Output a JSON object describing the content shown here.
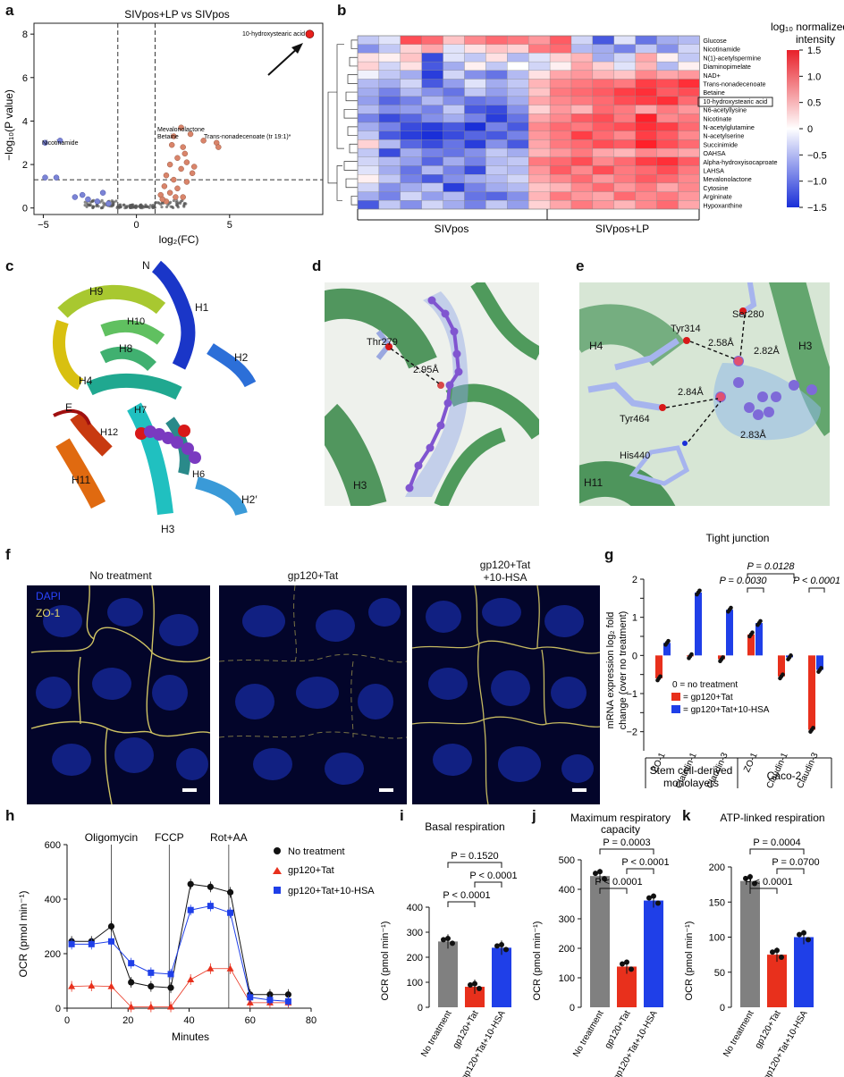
{
  "panel_labels": [
    "a",
    "b",
    "c",
    "d",
    "e",
    "f",
    "g",
    "h",
    "i",
    "j",
    "k"
  ],
  "colors": {
    "red": "#e8301c",
    "blue": "#1f3fe8",
    "gray": "#808080",
    "black": "#111111",
    "volcano_up": "#d9846a",
    "volcano_down": "#7b84d6",
    "heat_high": "#e8202a",
    "heat_low": "#1a2fd8",
    "protein_green": "#4f9a5c",
    "ligand_purple": "#7b4fc8"
  },
  "a": {
    "title": "SIVpos+LP vs SIVpos",
    "xlabel": "log₂(FC)",
    "ylabel": "−log₁₀(P value)",
    "ann": {
      "hsa": "10-hydroxystearic acid",
      "nic": "Nicotinamide",
      "mev": "Mevalonolactone",
      "bet": "Betaine",
      "tns": "Trans-nonadecenoate (tr 19:1)*"
    }
  },
  "b": {
    "legend_title_1": "log₁₀ normalized",
    "legend_title_2": "intensity",
    "legend_ticks": [
      "1.5",
      "1.0",
      "0.5",
      "0",
      "−0.5",
      "−1.0",
      "−1.5"
    ],
    "groups": [
      "SIVpos",
      "SIVpos+LP"
    ],
    "rows": [
      "Glucose",
      "Nicotinamide",
      "N(1)-acetylspermine",
      "Diaminopimelate",
      "NAD+",
      "Trans-nonadecenoate",
      "Betaine",
      "10-hydroxystearic acid",
      "N6-acetyllysine",
      "Nicotinate",
      "N-acetylglutamine",
      "N-acetylserine",
      "Succinimide",
      "OAHSA",
      "Alpha-hydroxyisocaproate",
      "LAHSA",
      "Mevalonolactone",
      "Cytosine",
      "Argininate",
      "Hypoxanthine"
    ],
    "boxed_row": "10-hydroxystearic acid"
  },
  "c": {
    "labels": [
      "N",
      "H1",
      "H2",
      "H9",
      "H10",
      "H8",
      "H4",
      "H7",
      "E",
      "H12",
      "H11",
      "H6",
      "H3",
      "H2′"
    ]
  },
  "d": {
    "labels": [
      "Thr279",
      "2.95Å",
      "H3"
    ]
  },
  "e": {
    "labels": [
      "Ser280",
      "H3",
      "Tyr314",
      "2.58Å",
      "2.82Å",
      "H4",
      "2.84Å",
      "Tyr464",
      "2.83Å",
      "His440",
      "H11"
    ]
  },
  "f": {
    "titles": [
      "No treatment",
      "gp120+Tat",
      "gp120+Tat\n+10-HSA"
    ],
    "stain_dapi": "DAPI",
    "stain_zo": "ZO-1"
  },
  "g": {
    "title": "Tight junction",
    "ylabel_1": "mRNA expression log₂ fold",
    "ylabel_2": "change (over no treatment)",
    "pvals": [
      "P = 0.0030",
      "P = 0.0128",
      "P < 0.0001"
    ],
    "group_labels": [
      "Stem cell-derived",
      "monolayers",
      "Caco-2"
    ],
    "legend": [
      "0 = no treatment",
      "= gp120+Tat",
      "= gp120+Tat+10-HSA"
    ]
  },
  "h": {
    "annotations": [
      "Oligomycin",
      "FCCP",
      "Rot+AA"
    ],
    "legend": [
      "No treatment",
      "gp120+Tat",
      "gp120+Tat+10-HSA"
    ],
    "xlabel": "Minutes",
    "ylabel": "OCR (pmol min⁻¹)"
  },
  "i": {
    "title": "Basal respiration",
    "pvals": [
      "P = 0.1520",
      "P < 0.0001",
      "P < 0.0001"
    ],
    "ylabel": "OCR (pmol min⁻¹)"
  },
  "j": {
    "title_1": "Maximum respiratory",
    "title_2": "capacity",
    "pvals": [
      "P = 0.0003",
      "P < 0.0001",
      "P < 0.0001"
    ],
    "ylabel": "OCR (pmol min⁻¹)"
  },
  "k": {
    "title": "ATP-linked respiration",
    "pvals": [
      "P = 0.0004",
      "P < 0.0001",
      "P = 0.0700"
    ],
    "ylabel": "OCR (pmol min⁻¹)"
  },
  "bar_categories": [
    "No treatment",
    "gp120+Tat",
    "gp120+Tat+10-HSA"
  ],
  "chart_data": [
    {
      "panel": "a",
      "type": "scatter",
      "title": "SIVpos+LP vs SIVpos",
      "xlabel": "log₂(FC)",
      "ylabel": "−log₁₀(P value)",
      "xlim": [
        -5.5,
        10
      ],
      "ylim": [
        -0.3,
        8.5
      ],
      "xticks": [
        -5,
        0,
        5
      ],
      "yticks": [
        0,
        2,
        4,
        6,
        8
      ],
      "threshold_y": 1.3,
      "threshold_x": [
        -1,
        1
      ],
      "highlight": {
        "x": 9.3,
        "y": 8.0,
        "label": "10-hydroxystearic acid"
      },
      "up_points": [
        [
          2.4,
          3.7
        ],
        [
          2.0,
          3.3
        ],
        [
          2.9,
          3.4
        ],
        [
          3.6,
          3.1
        ],
        [
          4.3,
          3.0
        ],
        [
          4.4,
          2.8
        ],
        [
          2.5,
          2.8
        ],
        [
          1.9,
          2.9
        ],
        [
          2.6,
          2.5
        ],
        [
          2.2,
          2.3
        ],
        [
          2.7,
          2.1
        ],
        [
          3.1,
          1.9
        ],
        [
          1.8,
          2.0
        ],
        [
          2.4,
          1.8
        ],
        [
          3.0,
          1.6
        ],
        [
          1.6,
          1.5
        ],
        [
          2.0,
          1.3
        ],
        [
          2.7,
          1.2
        ],
        [
          1.5,
          1.0
        ],
        [
          2.2,
          0.9
        ],
        [
          1.8,
          0.7
        ],
        [
          1.3,
          0.6
        ],
        [
          2.5,
          0.5
        ],
        [
          1.6,
          0.3
        ],
        [
          1.4,
          0.4
        ],
        [
          2.1,
          0.5
        ]
      ],
      "down_points": [
        [
          -4.1,
          3.1
        ],
        [
          -4.9,
          3.0
        ],
        [
          -4.3,
          1.4
        ],
        [
          -4.9,
          1.4
        ],
        [
          -3.3,
          0.5
        ],
        [
          -2.9,
          0.6
        ],
        [
          -2.6,
          0.4
        ],
        [
          -1.8,
          0.7
        ],
        [
          -1.5,
          0.2
        ],
        [
          -2.1,
          0.3
        ]
      ],
      "ns_points_count": 160
    },
    {
      "panel": "b",
      "type": "heatmap",
      "rows": [
        "Glucose",
        "Nicotinamide",
        "N(1)-acetylspermine",
        "Diaminopimelate",
        "NAD+",
        "Trans-nonadecenoate",
        "Betaine",
        "10-hydroxystearic acid",
        "N6-acetyllysine",
        "Nicotinate",
        "N-acetylglutamine",
        "N-acetylserine",
        "Succinimide",
        "OAHSA",
        "Alpha-hydroxyisocaproate",
        "LAHSA",
        "Mevalonolactone",
        "Cytosine",
        "Argininate",
        "Hypoxanthine"
      ],
      "columns_per_group": 8,
      "groups": [
        "SIVpos",
        "SIVpos+LP"
      ],
      "scale": [
        -1.5,
        1.5
      ],
      "values": [
        [
          -0.4,
          -0.2,
          1.2,
          1.0,
          0.4,
          0.8,
          1.0,
          0.9,
          0.7,
          1.1,
          -0.3,
          -1.2,
          -0.2,
          -1.0,
          -0.6,
          -0.5
        ],
        [
          -0.8,
          -0.4,
          0.3,
          0.6,
          -0.2,
          0.2,
          0.4,
          0.3,
          0.9,
          1.0,
          -0.5,
          -0.6,
          -0.9,
          -0.4,
          -0.8,
          -0.3
        ],
        [
          0.2,
          0.1,
          0.4,
          -1.3,
          -0.2,
          -0.4,
          0.2,
          -0.5,
          -0.2,
          0.3,
          0.5,
          -0.6,
          -0.3,
          0.6,
          0.1,
          -0.4
        ],
        [
          0.3,
          -0.3,
          0.2,
          -1.2,
          -0.6,
          0.1,
          -0.4,
          0.0,
          -0.3,
          0.1,
          0.6,
          0.3,
          -0.2,
          0.5,
          -0.5,
          0.1
        ],
        [
          -0.1,
          -0.4,
          -0.6,
          -1.4,
          -0.3,
          -0.8,
          -1.0,
          -0.5,
          0.2,
          0.6,
          0.7,
          0.5,
          0.4,
          0.8,
          0.6,
          0.7
        ],
        [
          -0.5,
          -0.6,
          -0.3,
          -1.2,
          -0.7,
          -0.2,
          -0.6,
          -0.4,
          0.5,
          0.8,
          0.9,
          1.0,
          0.9,
          1.3,
          1.2,
          1.4
        ],
        [
          -0.6,
          -0.9,
          -0.5,
          -0.8,
          -1.0,
          -0.4,
          -0.7,
          -0.5,
          0.4,
          0.9,
          1.0,
          1.1,
          1.3,
          1.4,
          1.1,
          1.2
        ],
        [
          -0.7,
          -1.1,
          -0.9,
          -0.5,
          -0.8,
          -1.0,
          -0.9,
          -0.6,
          0.6,
          0.8,
          0.9,
          1.0,
          1.2,
          1.3,
          1.4,
          1.0
        ],
        [
          -0.5,
          -0.8,
          -0.7,
          -0.9,
          -0.4,
          -1.2,
          -1.3,
          -0.8,
          0.3,
          0.7,
          0.5,
          1.0,
          0.9,
          0.6,
          0.9,
          0.7
        ],
        [
          -0.9,
          -1.3,
          -1.1,
          -0.8,
          -0.6,
          -0.9,
          -1.4,
          -1.0,
          0.6,
          0.8,
          1.1,
          1.2,
          0.9,
          1.5,
          0.8,
          0.9
        ],
        [
          -0.6,
          -0.9,
          -1.3,
          -1.4,
          -1.2,
          -1.5,
          -0.9,
          -1.2,
          0.8,
          1.0,
          0.9,
          1.1,
          1.2,
          1.4,
          1.3,
          1.0
        ],
        [
          -0.4,
          -1.2,
          -1.4,
          -1.5,
          -1.3,
          -1.1,
          -1.2,
          -0.9,
          0.7,
          0.9,
          1.3,
          1.0,
          0.8,
          1.3,
          1.1,
          0.8
        ],
        [
          0.3,
          -0.5,
          -1.1,
          -1.3,
          -1.0,
          -1.4,
          -0.8,
          -1.2,
          0.6,
          0.9,
          1.0,
          1.2,
          1.1,
          1.5,
          1.2,
          1.0
        ],
        [
          -0.4,
          -1.3,
          -0.6,
          -0.9,
          -1.0,
          -0.8,
          -0.4,
          -0.6,
          0.5,
          0.7,
          0.9,
          0.6,
          0.5,
          0.8,
          0.7,
          0.6
        ],
        [
          -0.3,
          -0.5,
          -0.7,
          -1.1,
          -0.6,
          -0.9,
          -0.5,
          -0.4,
          0.9,
          1.0,
          1.2,
          0.8,
          1.0,
          1.3,
          1.4,
          1.1
        ],
        [
          -0.2,
          -0.6,
          -1.0,
          -0.5,
          -0.9,
          -1.3,
          -0.4,
          -0.5,
          0.7,
          1.1,
          0.8,
          1.2,
          0.9,
          1.0,
          1.2,
          0.9
        ],
        [
          0.1,
          -0.4,
          -0.9,
          -1.2,
          -0.8,
          -0.6,
          -0.5,
          -0.3,
          0.6,
          0.8,
          1.0,
          0.7,
          0.9,
          1.1,
          1.0,
          0.8
        ],
        [
          -0.3,
          -0.8,
          -0.6,
          -0.4,
          -1.4,
          -0.9,
          -0.6,
          -0.5,
          0.4,
          0.5,
          0.8,
          1.0,
          0.7,
          0.9,
          0.6,
          0.8
        ],
        [
          -0.6,
          -0.9,
          -0.3,
          -0.7,
          -0.5,
          -1.0,
          -1.1,
          -0.8,
          0.5,
          0.9,
          0.7,
          0.6,
          1.0,
          0.8,
          0.9,
          0.7
        ],
        [
          -1.2,
          -0.4,
          -0.8,
          -0.3,
          -0.6,
          -0.9,
          -0.4,
          -0.7,
          0.3,
          0.6,
          0.9,
          0.7,
          0.5,
          0.8,
          1.0,
          0.6
        ]
      ]
    },
    {
      "panel": "g",
      "type": "bar",
      "title": "Tight junction",
      "categories": [
        "ZO-1",
        "Claudin-1",
        "Claudin-3",
        "ZO-1",
        "Claudin-1",
        "Claudin-3"
      ],
      "ylim": [
        -2.5,
        2
      ],
      "yticks": [
        -2,
        -1.5,
        -1,
        -0.5,
        0,
        0.5,
        1,
        1.5,
        2
      ],
      "series": [
        {
          "name": "gp120+Tat",
          "values": [
            -0.6,
            -0.02,
            -0.1,
            0.55,
            -0.55,
            -1.95
          ]
        },
        {
          "name": "gp120+Tat+10-HSA",
          "values": [
            0.33,
            1.65,
            1.2,
            0.85,
            -0.05,
            -0.38
          ]
        }
      ]
    },
    {
      "panel": "h",
      "type": "line",
      "xlabel": "Minutes",
      "ylabel": "OCR (pmol min⁻¹)",
      "xlim": [
        0,
        80
      ],
      "ylim": [
        0,
        600
      ],
      "xticks": [
        0,
        20,
        40,
        60,
        80
      ],
      "yticks": [
        0,
        200,
        400,
        600
      ],
      "markers": [
        {
          "x": 14.5,
          "label": "Oligomycin"
        },
        {
          "x": 33.5,
          "label": "FCCP"
        },
        {
          "x": 53,
          "label": "Rot+AA"
        }
      ],
      "x": [
        1.5,
        8,
        14.5,
        21,
        27.5,
        34,
        40.5,
        47,
        53.5,
        60,
        66.5,
        72.5
      ],
      "series": [
        {
          "name": "No treatment",
          "values": [
            245,
            245,
            300,
            95,
            80,
            75,
            455,
            445,
            425,
            50,
            50,
            50
          ]
        },
        {
          "name": "gp120+Tat",
          "values": [
            80,
            82,
            80,
            5,
            5,
            5,
            105,
            145,
            145,
            20,
            20,
            20
          ]
        },
        {
          "name": "gp120+Tat+10-HSA",
          "values": [
            235,
            235,
            245,
            165,
            130,
            125,
            360,
            375,
            350,
            40,
            30,
            25
          ]
        }
      ]
    },
    {
      "panel": "i",
      "type": "bar",
      "title": "Basal respiration",
      "categories": [
        "No treatment",
        "gp120+Tat",
        "gp120+Tat+10-HSA"
      ],
      "values": [
        263,
        82,
        238
      ],
      "ylim": [
        0,
        400
      ],
      "yticks": [
        0,
        100,
        200,
        300,
        400
      ],
      "pvalues": [
        "P = 0.1520",
        "P < 0.0001",
        "P < 0.0001"
      ]
    },
    {
      "panel": "j",
      "type": "bar",
      "title": "Maximum respiratory capacity",
      "categories": [
        "No treatment",
        "gp120+Tat",
        "gp120+Tat+10-HSA"
      ],
      "values": [
        445,
        138,
        362
      ],
      "ylim": [
        0,
        500
      ],
      "yticks": [
        0,
        100,
        200,
        300,
        400,
        500
      ],
      "pvalues": [
        "P = 0.0003",
        "P < 0.0001",
        "P < 0.0001"
      ]
    },
    {
      "panel": "k",
      "type": "bar",
      "title": "ATP-linked respiration",
      "categories": [
        "No treatment",
        "gp120+Tat",
        "gp120+Tat+10-HSA"
      ],
      "values": [
        180,
        75,
        100
      ],
      "ylim": [
        0,
        200
      ],
      "yticks": [
        0,
        50,
        100,
        150,
        200
      ],
      "pvalues": [
        "P = 0.0004",
        "P < 0.0001",
        "P = 0.0700"
      ]
    }
  ]
}
